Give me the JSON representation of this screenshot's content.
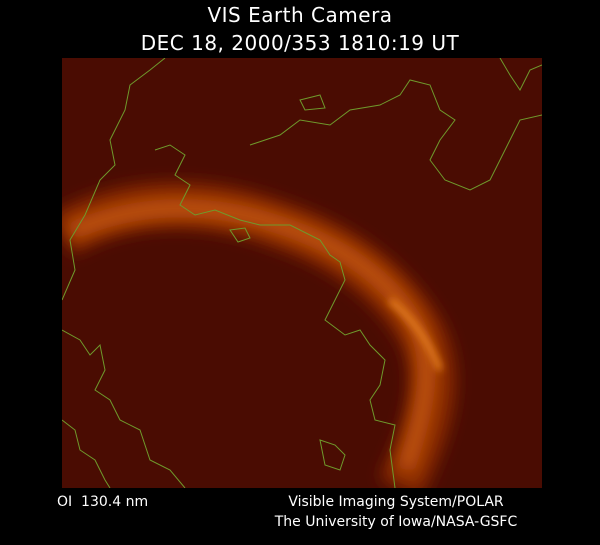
{
  "header": {
    "title": "VIS Earth Camera",
    "subtitle": "DEC 18, 2000/353 1810:19 UT"
  },
  "footer": {
    "wavelength": "OI  130.4 nm",
    "instrument": "Visible Imaging System/POLAR",
    "institution": "The University of Iowa/NASA-GSFC"
  }
}
